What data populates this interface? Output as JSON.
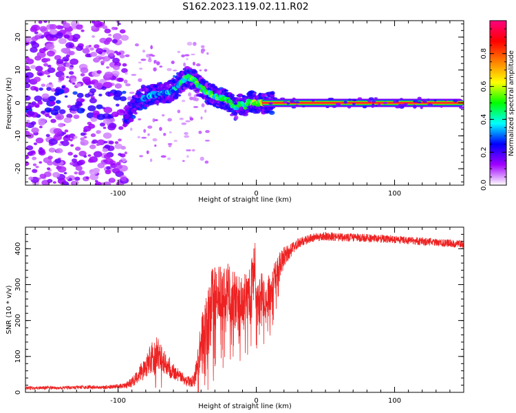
{
  "title": "S162.2023.119.02.11.R02",
  "chart_data": [
    {
      "type": "heatmap",
      "xlabel": "Height of straight line (km)",
      "ylabel": "Frequency (Hz)",
      "xlim": [
        -167,
        150
      ],
      "ylim": [
        -25,
        25
      ],
      "xticks": [
        -100,
        0,
        100
      ],
      "yticks": [
        -20,
        -10,
        0,
        10,
        20
      ],
      "grid": false,
      "colorbar": {
        "label": "Normalized spectral amplitude",
        "range": [
          0,
          1
        ],
        "ticks": [
          0.0,
          0.2,
          0.4,
          0.6,
          0.8
        ],
        "colormap": [
          "#ffffff",
          "#a000ff",
          "#0000ff",
          "#00ffff",
          "#00ff00",
          "#ffff00",
          "#ff8000",
          "#ff0000",
          "#ff0080"
        ]
      },
      "ridge": {
        "x": [
          -93,
          -85,
          -75,
          -65,
          -58,
          -55,
          -50,
          -45,
          -40,
          -35,
          -30,
          -25,
          -20,
          -15,
          -12,
          -8,
          -5,
          0,
          10,
          150
        ],
        "y": [
          -4,
          1,
          2.5,
          3,
          4.5,
          6,
          8,
          7,
          4.5,
          3,
          2,
          1.5,
          0.5,
          -2,
          0,
          -1,
          0.5,
          0,
          0,
          0
        ],
        "amplitude": [
          0.2,
          0.35,
          0.4,
          0.4,
          0.45,
          0.5,
          0.55,
          0.6,
          0.55,
          0.6,
          0.6,
          0.55,
          0.55,
          0.5,
          0.55,
          0.6,
          0.65,
          0.7,
          0.85,
          0.9
        ]
      }
    },
    {
      "type": "line",
      "xlabel": "Height of straight line (km)",
      "ylabel": "SNR (10 * v/v)",
      "xlim": [
        -167,
        150
      ],
      "ylim": [
        0,
        460
      ],
      "xticks": [
        -100,
        0,
        100
      ],
      "yticks": [
        0,
        100,
        200,
        300,
        400
      ],
      "grid": false,
      "line_color": "#ee2222",
      "series": [
        {
          "x": [
            -167,
            -150,
            -130,
            -110,
            -95,
            -90,
            -85,
            -80,
            -76,
            -72,
            -68,
            -64,
            -60,
            -55,
            -50,
            -45,
            -40,
            -36,
            -32,
            -28,
            -24,
            -20,
            -16,
            -12,
            -8,
            -4,
            -1,
            0,
            2,
            6,
            10,
            14,
            18,
            22,
            26,
            30,
            40,
            50,
            60,
            80,
            100,
            120,
            140,
            150
          ],
          "y": [
            12,
            12,
            14,
            14,
            18,
            28,
            48,
            72,
            98,
            108,
            92,
            74,
            58,
            44,
            30,
            35,
            120,
            200,
            240,
            260,
            250,
            270,
            260,
            240,
            255,
            270,
            390,
            235,
            260,
            265,
            275,
            320,
            365,
            385,
            400,
            415,
            430,
            435,
            432,
            430,
            426,
            420,
            415,
            412
          ],
          "noise": [
            5,
            5,
            5,
            5,
            8,
            14,
            22,
            34,
            44,
            48,
            40,
            32,
            24,
            18,
            14,
            22,
            75,
            100,
            110,
            105,
            95,
            90,
            85,
            80,
            80,
            85,
            50,
            60,
            70,
            70,
            62,
            50,
            36,
            24,
            18,
            14,
            12,
            12,
            12,
            12,
            11,
            11,
            11,
            11
          ]
        }
      ]
    }
  ]
}
